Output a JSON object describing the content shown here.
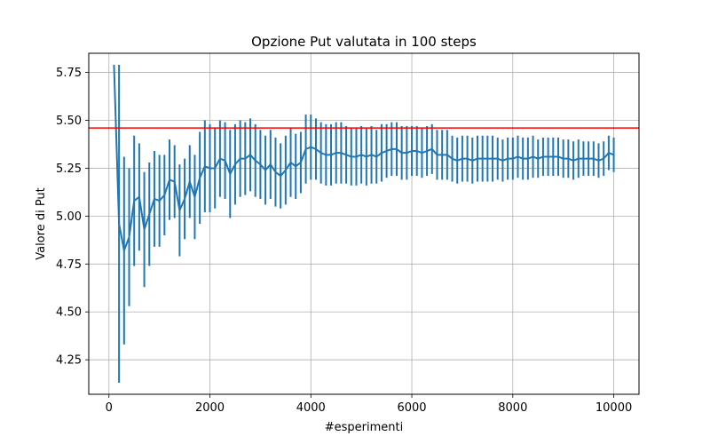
{
  "chart_data": {
    "type": "line",
    "title": "Opzione Put valutata in 100 steps",
    "xlabel": "#esperimenti",
    "ylabel": "Valore di Put",
    "xlim": [
      -400,
      10500
    ],
    "ylim": [
      4.07,
      5.85
    ],
    "xticks": [
      0,
      2000,
      4000,
      6000,
      8000,
      10000
    ],
    "xtick_labels": [
      "0",
      "2000",
      "4000",
      "6000",
      "8000",
      "10000"
    ],
    "yticks": [
      4.25,
      4.5,
      4.75,
      5.0,
      5.25,
      5.5,
      5.75
    ],
    "ytick_labels": [
      "4.25",
      "4.50",
      "4.75",
      "5.00",
      "5.25",
      "5.50",
      "5.75"
    ],
    "grid": true,
    "series_color": "#1f77b4",
    "reference_line": {
      "y": 5.46,
      "color": "#ff0000"
    },
    "x": [
      100,
      200,
      300,
      400,
      500,
      600,
      700,
      800,
      900,
      1000,
      1100,
      1200,
      1300,
      1400,
      1500,
      1600,
      1700,
      1800,
      1900,
      2000,
      2100,
      2200,
      2300,
      2400,
      2500,
      2600,
      2700,
      2800,
      2900,
      3000,
      3100,
      3200,
      3300,
      3400,
      3500,
      3600,
      3700,
      3800,
      3900,
      4000,
      4100,
      4200,
      4300,
      4400,
      4500,
      4600,
      4700,
      4800,
      4900,
      5000,
      5100,
      5200,
      5300,
      5400,
      5500,
      5600,
      5700,
      5800,
      5900,
      6000,
      6100,
      6200,
      6300,
      6400,
      6500,
      6600,
      6700,
      6800,
      6900,
      7000,
      7100,
      7200,
      7300,
      7400,
      7500,
      7600,
      7700,
      7800,
      7900,
      8000,
      8100,
      8200,
      8300,
      8400,
      8500,
      8600,
      8700,
      8800,
      8900,
      9000,
      9100,
      9200,
      9300,
      9400,
      9500,
      9600,
      9700,
      9800,
      9900,
      10000
    ],
    "y": [
      5.79,
      4.96,
      4.82,
      4.89,
      5.08,
      5.1,
      4.93,
      5.01,
      5.09,
      5.08,
      5.11,
      5.19,
      5.18,
      5.03,
      5.09,
      5.18,
      5.1,
      5.2,
      5.26,
      5.25,
      5.25,
      5.3,
      5.29,
      5.22,
      5.27,
      5.3,
      5.3,
      5.32,
      5.29,
      5.27,
      5.24,
      5.27,
      5.23,
      5.21,
      5.24,
      5.28,
      5.26,
      5.28,
      5.35,
      5.36,
      5.35,
      5.33,
      5.32,
      5.32,
      5.33,
      5.33,
      5.32,
      5.31,
      5.31,
      5.32,
      5.31,
      5.32,
      5.31,
      5.33,
      5.34,
      5.35,
      5.35,
      5.33,
      5.33,
      5.34,
      5.34,
      5.33,
      5.34,
      5.35,
      5.32,
      5.32,
      5.32,
      5.3,
      5.29,
      5.3,
      5.3,
      5.29,
      5.3,
      5.3,
      5.3,
      5.3,
      5.3,
      5.29,
      5.3,
      5.3,
      5.31,
      5.3,
      5.3,
      5.31,
      5.3,
      5.31,
      5.31,
      5.31,
      5.31,
      5.3,
      5.3,
      5.29,
      5.3,
      5.3,
      5.3,
      5.3,
      5.29,
      5.3,
      5.33,
      5.32
    ],
    "err": [
      0.0,
      0.83,
      0.49,
      0.36,
      0.34,
      0.28,
      0.3,
      0.27,
      0.25,
      0.24,
      0.21,
      0.21,
      0.19,
      0.24,
      0.21,
      0.19,
      0.22,
      0.24,
      0.24,
      0.23,
      0.21,
      0.2,
      0.2,
      0.23,
      0.21,
      0.2,
      0.19,
      0.19,
      0.19,
      0.18,
      0.18,
      0.18,
      0.18,
      0.17,
      0.18,
      0.18,
      0.17,
      0.16,
      0.18,
      0.17,
      0.16,
      0.16,
      0.16,
      0.16,
      0.16,
      0.16,
      0.15,
      0.15,
      0.15,
      0.15,
      0.15,
      0.15,
      0.14,
      0.15,
      0.14,
      0.14,
      0.14,
      0.14,
      0.14,
      0.13,
      0.13,
      0.13,
      0.13,
      0.13,
      0.13,
      0.13,
      0.13,
      0.12,
      0.12,
      0.12,
      0.12,
      0.12,
      0.12,
      0.12,
      0.12,
      0.12,
      0.11,
      0.11,
      0.11,
      0.11,
      0.11,
      0.11,
      0.11,
      0.11,
      0.1,
      0.1,
      0.1,
      0.1,
      0.1,
      0.1,
      0.1,
      0.1,
      0.1,
      0.09,
      0.09,
      0.09,
      0.09,
      0.09,
      0.09,
      0.09
    ]
  }
}
